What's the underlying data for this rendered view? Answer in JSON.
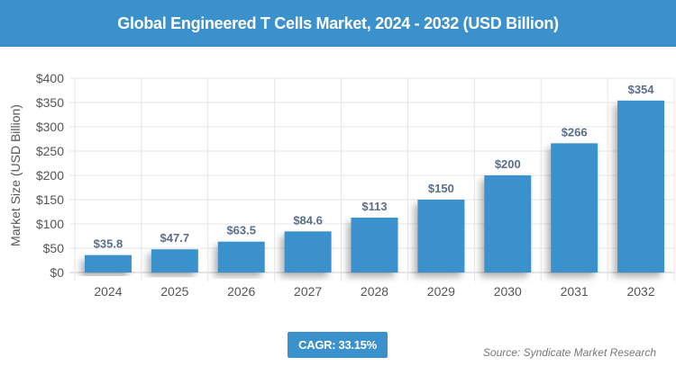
{
  "chart_data": {
    "type": "bar",
    "title": "Global Engineered T Cells Market, 2024 - 2032 (USD Billion)",
    "xlabel": "",
    "ylabel": "Market Size (USD Billion)",
    "categories": [
      "2024",
      "2025",
      "2026",
      "2027",
      "2028",
      "2029",
      "2030",
      "2031",
      "2032"
    ],
    "values": [
      35.8,
      47.7,
      63.5,
      84.6,
      113,
      150,
      200,
      266,
      354
    ],
    "data_labels": [
      "$35.8",
      "$47.7",
      "$63.5",
      "$84.6",
      "$113",
      "$150",
      "$200",
      "$266",
      "$354"
    ],
    "ylim": [
      0,
      400
    ],
    "yticks": [
      0,
      50,
      100,
      150,
      200,
      250,
      300,
      350,
      400
    ],
    "ytick_labels": [
      "$0",
      "$50",
      "$100",
      "$150",
      "$200",
      "$250",
      "$300",
      "$350",
      "$400"
    ],
    "grid": true,
    "bar_color": "#3b91cc",
    "label_color": "#5a6e8a"
  },
  "cagr": "CAGR: 33.15%",
  "source": "Source: Syndicate Market Research"
}
